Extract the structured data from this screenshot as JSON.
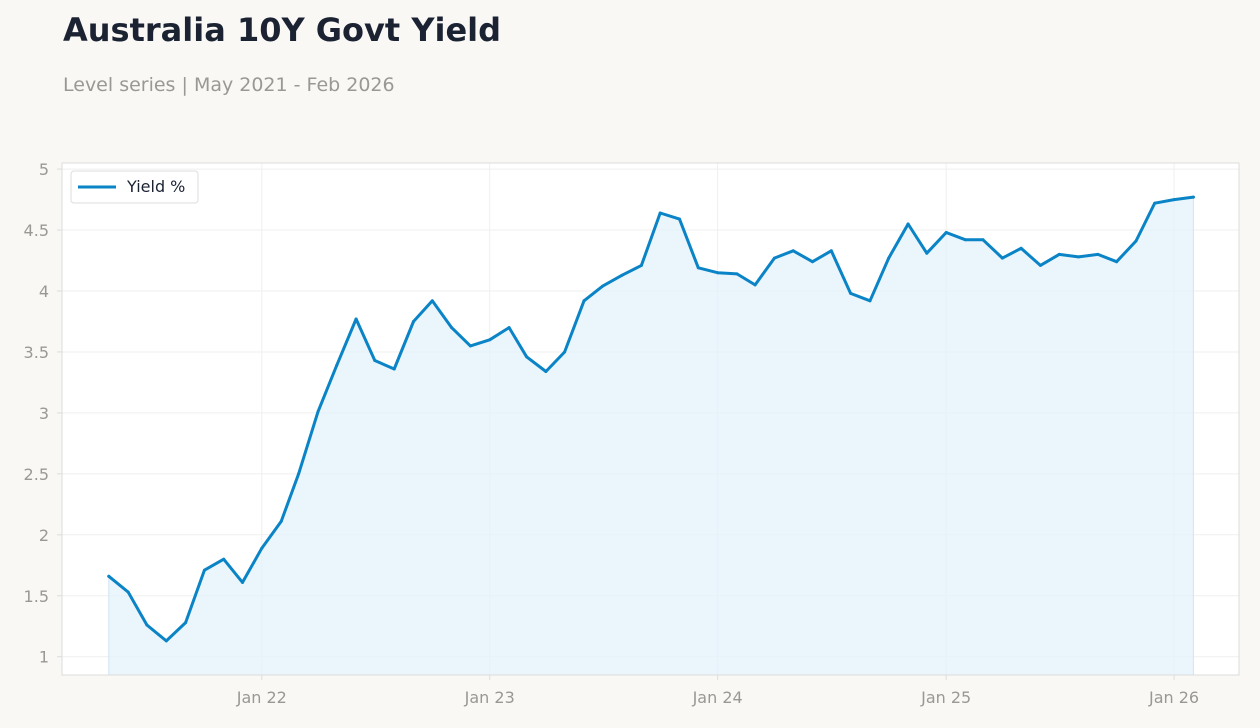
{
  "header": {
    "title": "Australia 10Y Govt Yield",
    "subtitle": "Level series | May 2021 - Feb 2026"
  },
  "colors": {
    "line": "#0a84c6",
    "fill": "#e3f1fb",
    "grid": "#efefef",
    "axis_border": "#dcdcdc",
    "tick_text": "#9a9894",
    "background": "#f9f8f5",
    "plot_background": "#ffffff"
  },
  "chart_data": {
    "type": "area",
    "title": "Australia 10Y Govt Yield",
    "subtitle": "Level series | May 2021 - Feb 2026",
    "xlabel": "",
    "ylabel": "",
    "grid": true,
    "legend_position": "top-left",
    "xlim": [
      "2021-02-15",
      "2026-04-15"
    ],
    "ylim": [
      0.85,
      5.05
    ],
    "x_ticks": [
      {
        "date": "2022-01-01",
        "label": "Jan 22"
      },
      {
        "date": "2023-01-01",
        "label": "Jan 23"
      },
      {
        "date": "2024-01-01",
        "label": "Jan 24"
      },
      {
        "date": "2025-01-01",
        "label": "Jan 25"
      },
      {
        "date": "2026-01-01",
        "label": "Jan 26"
      }
    ],
    "y_ticks": [
      {
        "value": 1,
        "label": "1"
      },
      {
        "value": 1.5,
        "label": "1.5"
      },
      {
        "value": 2,
        "label": "2"
      },
      {
        "value": 2.5,
        "label": "2.5"
      },
      {
        "value": 3,
        "label": "3"
      },
      {
        "value": 3.5,
        "label": "3.5"
      },
      {
        "value": 4,
        "label": "4"
      },
      {
        "value": 4.5,
        "label": "4.5"
      },
      {
        "value": 5,
        "label": "5"
      }
    ],
    "series": [
      {
        "name": "Yield %",
        "x": [
          "2021-05-01",
          "2021-06-01",
          "2021-07-01",
          "2021-08-01",
          "2021-09-01",
          "2021-10-01",
          "2021-11-01",
          "2021-12-01",
          "2022-01-01",
          "2022-02-01",
          "2022-03-01",
          "2022-04-01",
          "2022-05-01",
          "2022-06-01",
          "2022-07-01",
          "2022-08-01",
          "2022-09-01",
          "2022-10-01",
          "2022-11-01",
          "2022-12-01",
          "2023-01-01",
          "2023-02-01",
          "2023-03-01",
          "2023-04-01",
          "2023-05-01",
          "2023-06-01",
          "2023-07-01",
          "2023-08-01",
          "2023-09-01",
          "2023-10-01",
          "2023-11-01",
          "2023-12-01",
          "2024-01-01",
          "2024-02-01",
          "2024-03-01",
          "2024-04-01",
          "2024-05-01",
          "2024-06-01",
          "2024-07-01",
          "2024-08-01",
          "2024-09-01",
          "2024-10-01",
          "2024-11-01",
          "2024-12-01",
          "2025-01-01",
          "2025-02-01",
          "2025-03-01",
          "2025-04-01",
          "2025-05-01",
          "2025-06-01",
          "2025-07-01",
          "2025-08-01",
          "2025-09-01",
          "2025-10-01",
          "2025-11-01",
          "2025-12-01",
          "2026-01-01",
          "2026-02-01"
        ],
        "values": [
          1.66,
          1.53,
          1.26,
          1.13,
          1.28,
          1.71,
          1.8,
          1.61,
          1.89,
          2.11,
          2.5,
          3.01,
          3.39,
          3.77,
          3.43,
          3.36,
          3.75,
          3.92,
          3.7,
          3.55,
          3.6,
          3.7,
          3.46,
          3.34,
          3.5,
          3.92,
          4.04,
          4.13,
          4.21,
          4.64,
          4.59,
          4.19,
          4.15,
          4.14,
          4.05,
          4.27,
          4.33,
          4.24,
          4.33,
          3.98,
          3.92,
          4.27,
          4.55,
          4.31,
          4.48,
          4.42,
          4.42,
          4.27,
          4.35,
          4.21,
          4.3,
          4.28,
          4.3,
          4.24,
          4.41,
          4.72,
          4.75,
          4.77
        ]
      }
    ]
  }
}
